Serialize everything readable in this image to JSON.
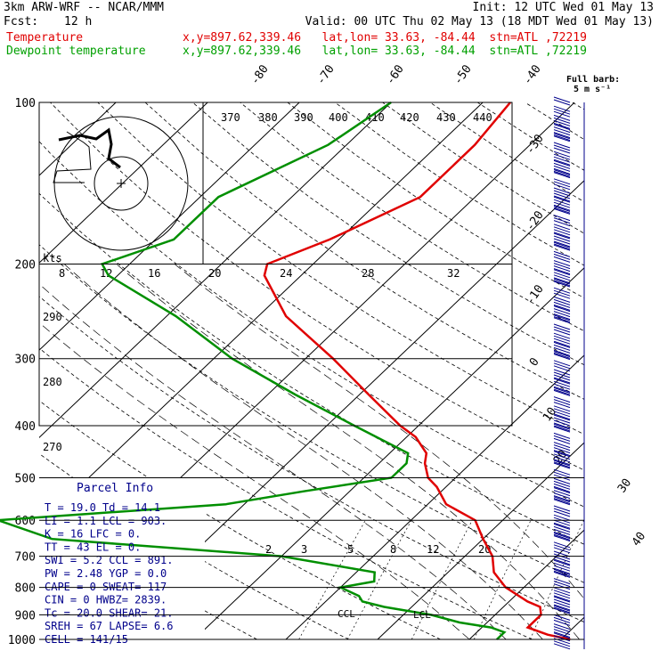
{
  "header": {
    "model": "3km ARW-WRF -- NCAR/MMM",
    "init": "Init: 12 UTC Wed 01 May 13",
    "fcst_label": "Fcst:",
    "fcst_value": "12 h",
    "valid": "Valid: 00 UTC Thu 02 May 13 (18 MDT Wed 01 May 13)",
    "temp_line": "Temperature",
    "dew_line": "Dewpoint temperature",
    "loc": "x,y=897.62,339.46   lat,lon= 33.63, -84.44  stn=ATL ,72219"
  },
  "barb_legend": {
    "title": "Full barb:",
    "value": "5 m s⁻¹"
  },
  "hodograph_label": "kts",
  "parcel_info": {
    "title": "Parcel Info",
    "rows": [
      "T  =   19.0 Td =  14.1",
      "LI =    1.1 LCL =  903.",
      "K  =     16 LFC =    0.",
      "TT =     43 EL  =    0.",
      "SWI =   5.2 CCL =  891.",
      "PW =   2.48 YGP =   0.0",
      "CAPE =    0 SWEAT=  117",
      "CIN =     0 HWBZ= 2839.",
      "Tc =   20.0 SHEAR=  21.",
      "SREH =   67 LAPSE=  6.6",
      "CELL = 141/15"
    ]
  },
  "markers": {
    "ccl": "CCL",
    "lcl": "LCL"
  },
  "colors": {
    "temperature": "#e00000",
    "dewpoint": "#008f00",
    "barbs": "#00008b"
  },
  "chart_data": {
    "type": "line",
    "yscale": "log-pressure",
    "ylim": [
      1000,
      100
    ],
    "pressure_ticks": [
      100,
      200,
      300,
      400,
      500,
      600,
      700,
      800,
      900,
      1000
    ],
    "isotherm_labels": [
      -80,
      -70,
      -60,
      -50,
      -40,
      -30,
      -20,
      -10,
      0,
      10,
      20,
      30,
      40
    ],
    "theta_labels": [
      370,
      380,
      390,
      400,
      410,
      420,
      430,
      440,
      290,
      280,
      270
    ],
    "mixing_ratio_labels": [
      2,
      3,
      5,
      8,
      12,
      20
    ],
    "hodograph_speed_labels": [
      8,
      12,
      16,
      20,
      24,
      28,
      32
    ],
    "series": [
      {
        "name": "Temperature",
        "points": [
          [
            1000,
            21
          ],
          [
            980,
            18
          ],
          [
            950,
            15
          ],
          [
            920,
            15
          ],
          [
            900,
            15
          ],
          [
            870,
            14
          ],
          [
            850,
            12
          ],
          [
            800,
            8
          ],
          [
            750,
            5
          ],
          [
            700,
            3
          ],
          [
            650,
            0
          ],
          [
            600,
            -3
          ],
          [
            560,
            -8
          ],
          [
            520,
            -11
          ],
          [
            500,
            -13
          ],
          [
            470,
            -15
          ],
          [
            450,
            -16
          ],
          [
            420,
            -19
          ],
          [
            400,
            -22
          ],
          [
            350,
            -29
          ],
          [
            300,
            -37
          ],
          [
            250,
            -47
          ],
          [
            210,
            -54
          ],
          [
            200,
            -55
          ],
          [
            180,
            -51
          ],
          [
            150,
            -46
          ],
          [
            120,
            -46
          ],
          [
            100,
            -47
          ]
        ]
      },
      {
        "name": "Dewpoint temperature",
        "points": [
          [
            1000,
            13
          ],
          [
            970,
            13
          ],
          [
            950,
            11
          ],
          [
            930,
            7
          ],
          [
            900,
            3
          ],
          [
            870,
            -3
          ],
          [
            850,
            -6
          ],
          [
            830,
            -7
          ],
          [
            800,
            -10
          ],
          [
            780,
            -7
          ],
          [
            750,
            -8
          ],
          [
            700,
            -20
          ],
          [
            650,
            -47
          ],
          [
            600,
            -55
          ],
          [
            560,
            -32
          ],
          [
            530,
            -25
          ],
          [
            500,
            -17
          ],
          [
            470,
            -17
          ],
          [
            450,
            -18
          ],
          [
            400,
            -27
          ],
          [
            350,
            -37
          ],
          [
            300,
            -48
          ],
          [
            250,
            -59
          ],
          [
            210,
            -71
          ],
          [
            200,
            -73
          ],
          [
            180,
            -68
          ],
          [
            150,
            -68
          ],
          [
            120,
            -62
          ],
          [
            100,
            -60
          ]
        ]
      }
    ]
  }
}
